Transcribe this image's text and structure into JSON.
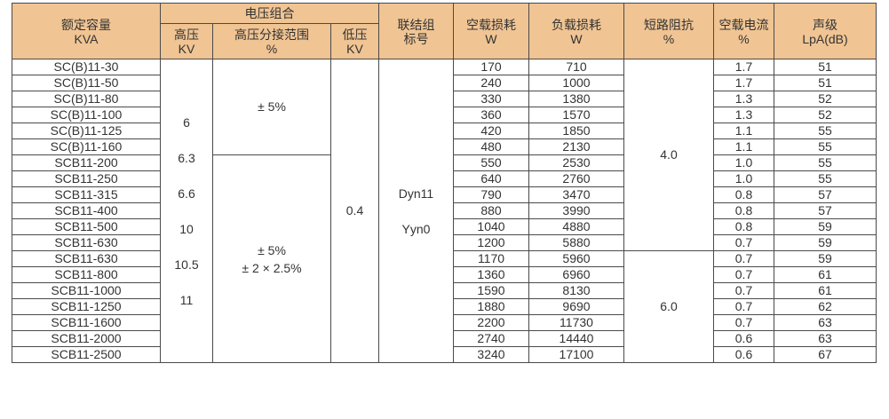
{
  "header": {
    "capacity": [
      "额定容量",
      "KVA"
    ],
    "voltage_group": "电压组合",
    "hv": [
      "高压",
      "KV"
    ],
    "tap_range": [
      "高压分接范围",
      "%"
    ],
    "lv": [
      "低压",
      "KV"
    ],
    "vector_group": [
      "联结组",
      "标号"
    ],
    "no_load_loss": [
      "空载损耗",
      "W"
    ],
    "load_loss": [
      "负载损耗",
      "W"
    ],
    "impedance": [
      "短路阻抗",
      "%"
    ],
    "no_load_current": [
      "空载电流",
      "%"
    ],
    "sound_level": [
      "声级",
      "LpA(dB)"
    ]
  },
  "merged": {
    "hv_values": [
      "6",
      "6.3",
      "6.6",
      "10",
      "10.5",
      "11"
    ],
    "tap_a": "± 5%",
    "tap_b": [
      "± 5%",
      "± 2 × 2.5%"
    ],
    "lv": "0.4",
    "vector_groups": [
      "Dyn11",
      "Yyn0"
    ],
    "impedance_a": "4.0",
    "impedance_b": "6.0"
  },
  "rows": [
    {
      "model": "SC(B)11-30",
      "no_load": "170",
      "load": "710",
      "current": "1.7",
      "sound": "51"
    },
    {
      "model": "SC(B)11-50",
      "no_load": "240",
      "load": "1000",
      "current": "1.7",
      "sound": "51"
    },
    {
      "model": "SC(B)11-80",
      "no_load": "330",
      "load": "1380",
      "current": "1.3",
      "sound": "52"
    },
    {
      "model": "SC(B)11-100",
      "no_load": "360",
      "load": "1570",
      "current": "1.3",
      "sound": "52"
    },
    {
      "model": "SC(B)11-125",
      "no_load": "420",
      "load": "1850",
      "current": "1.1",
      "sound": "55"
    },
    {
      "model": "SC(B)11-160",
      "no_load": "480",
      "load": "2130",
      "current": "1.1",
      "sound": "55"
    },
    {
      "model": "SCB11-200",
      "no_load": "550",
      "load": "2530",
      "current": "1.0",
      "sound": "55"
    },
    {
      "model": "SCB11-250",
      "no_load": "640",
      "load": "2760",
      "current": "1.0",
      "sound": "55"
    },
    {
      "model": "SCB11-315",
      "no_load": "790",
      "load": "3470",
      "current": "0.8",
      "sound": "57"
    },
    {
      "model": "SCB11-400",
      "no_load": "880",
      "load": "3990",
      "current": "0.8",
      "sound": "57"
    },
    {
      "model": "SCB11-500",
      "no_load": "1040",
      "load": "4880",
      "current": "0.8",
      "sound": "59"
    },
    {
      "model": "SCB11-630",
      "no_load": "1200",
      "load": "5880",
      "current": "0.7",
      "sound": "59"
    },
    {
      "model": "SCB11-630",
      "no_load": "1170",
      "load": "5960",
      "current": "0.7",
      "sound": "59"
    },
    {
      "model": "SCB11-800",
      "no_load": "1360",
      "load": "6960",
      "current": "0.7",
      "sound": "61"
    },
    {
      "model": "SCB11-1000",
      "no_load": "1590",
      "load": "8130",
      "current": "0.7",
      "sound": "61"
    },
    {
      "model": "SCB11-1250",
      "no_load": "1880",
      "load": "9690",
      "current": "0.7",
      "sound": "62"
    },
    {
      "model": "SCB11-1600",
      "no_load": "2200",
      "load": "11730",
      "current": "0.7",
      "sound": "63"
    },
    {
      "model": "SCB11-2000",
      "no_load": "2740",
      "load": "14440",
      "current": "0.6",
      "sound": "63"
    },
    {
      "model": "SCB11-2500",
      "no_load": "3240",
      "load": "17100",
      "current": "0.6",
      "sound": "67"
    }
  ],
  "colors": {
    "header_bg": "#f0c493",
    "border": "#4a4a4a",
    "text": "#333333"
  }
}
